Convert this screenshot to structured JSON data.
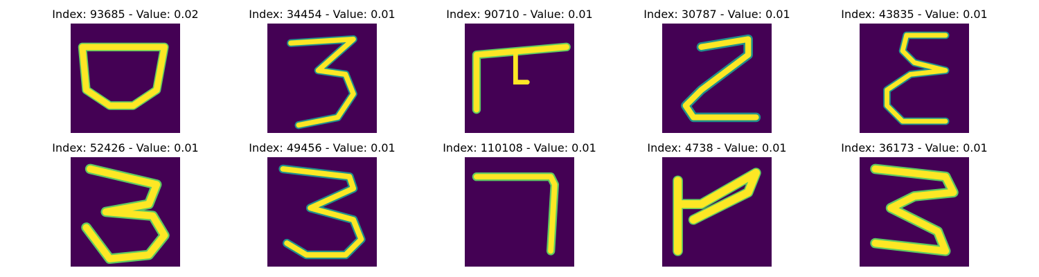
{
  "figure": {
    "background_color": "#440154",
    "stroke_colors": [
      "#fde725",
      "#5ec962",
      "#21918c",
      "#3b528b"
    ],
    "panels": [
      {
        "title": "Index: 93685 - Value: 0.02",
        "glyph": "wide-bowl-shape"
      },
      {
        "title": "Index: 34454 - Value: 0.01",
        "glyph": "digit-3-shape"
      },
      {
        "title": "Index: 90710 - Value: 0.01",
        "glyph": "bent-7-shape"
      },
      {
        "title": "Index: 30787 - Value: 0.01",
        "glyph": "z-shape"
      },
      {
        "title": "Index: 43835 - Value: 0.01",
        "glyph": "epsilon-shape"
      },
      {
        "title": "Index: 52426 - Value: 0.01",
        "glyph": "digit-3-shape"
      },
      {
        "title": "Index: 49456 - Value: 0.01",
        "glyph": "digit-3-shape"
      },
      {
        "title": "Index: 110108 - Value: 0.01",
        "glyph": "digit-7-shape"
      },
      {
        "title": "Index: 4738 - Value: 0.01",
        "glyph": "flag-shape"
      },
      {
        "title": "Index: 36173 - Value: 0.01",
        "glyph": "digit-3-shape"
      }
    ]
  }
}
